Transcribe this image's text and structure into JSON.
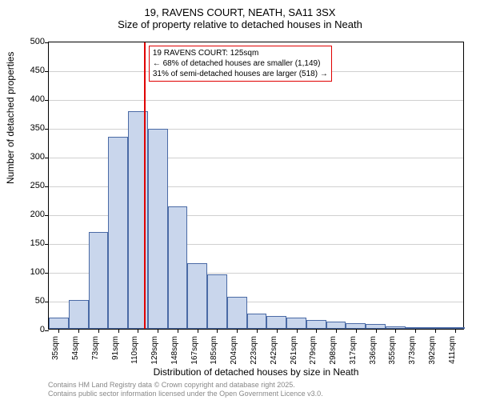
{
  "title": "19, RAVENS COURT, NEATH, SA11 3SX",
  "subtitle": "Size of property relative to detached houses in Neath",
  "y_axis_label": "Number of detached properties",
  "x_axis_label": "Distribution of detached houses by size in Neath",
  "chart": {
    "type": "histogram",
    "ylim": [
      0,
      500
    ],
    "ytick_step": 50,
    "x_labels": [
      "35sqm",
      "54sqm",
      "73sqm",
      "91sqm",
      "110sqm",
      "129sqm",
      "148sqm",
      "167sqm",
      "185sqm",
      "204sqm",
      "223sqm",
      "242sqm",
      "261sqm",
      "279sqm",
      "298sqm",
      "317sqm",
      "336sqm",
      "355sqm",
      "373sqm",
      "392sqm",
      "411sqm"
    ],
    "values": [
      20,
      50,
      168,
      333,
      378,
      347,
      213,
      114,
      94,
      55,
      27,
      22,
      20,
      15,
      12,
      10,
      8,
      4,
      2,
      2,
      1
    ],
    "bar_fill": "#c9d6ec",
    "bar_border": "#4a6aa5",
    "background_color": "#ffffff",
    "grid_color": "#d0d0d0"
  },
  "marker": {
    "position_index": 4.8,
    "line_color": "#e00000",
    "annotation": {
      "line1": "19 RAVENS COURT: 125sqm",
      "line2": "← 68% of detached houses are smaller (1,149)",
      "line3": "31% of semi-detached houses are larger (518) →",
      "border_color": "#e00000"
    }
  },
  "attribution": {
    "line1": "Contains HM Land Registry data © Crown copyright and database right 2025.",
    "line2": "Contains public sector information licensed under the Open Government Licence v3.0."
  }
}
